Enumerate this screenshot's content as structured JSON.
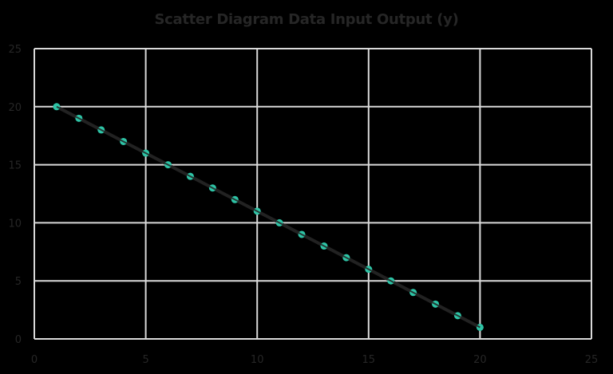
{
  "chart_data": {
    "type": "scatter",
    "title": "Scatter Diagram Data Input Output (y)",
    "xlabel": "",
    "ylabel": "",
    "xlim": [
      0,
      25
    ],
    "ylim": [
      0,
      25
    ],
    "x_ticks": [
      "0",
      "5",
      "10",
      "15",
      "20",
      "25"
    ],
    "y_ticks": [
      "0",
      "5",
      "10",
      "15",
      "20",
      "25"
    ],
    "grid": true,
    "legend": null,
    "series": [
      {
        "name": "Output (y)",
        "style": "markers with connecting line",
        "x": [
          1,
          2,
          3,
          4,
          5,
          6,
          7,
          8,
          9,
          10,
          11,
          12,
          13,
          14,
          15,
          16,
          17,
          18,
          19,
          20
        ],
        "y": [
          20,
          19,
          18,
          17,
          16,
          15,
          14,
          13,
          12,
          11,
          10,
          9,
          8,
          7,
          6,
          5,
          4,
          3,
          2,
          1
        ]
      }
    ],
    "colors": {
      "background": "#000000",
      "gridline": "#d9d9d9",
      "line": "#222222",
      "marker": "#2ec4a6",
      "text": "#262626"
    }
  }
}
